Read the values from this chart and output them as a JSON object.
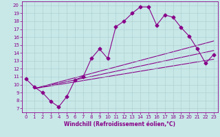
{
  "xlabel": "Windchill (Refroidissement éolien,°C)",
  "ylabel": "",
  "bg_color": "#c8e8e8",
  "line_color": "#880088",
  "xlim": [
    -0.5,
    23.5
  ],
  "ylim": [
    6.5,
    20.5
  ],
  "xticks": [
    0,
    1,
    2,
    3,
    4,
    5,
    6,
    7,
    8,
    9,
    10,
    11,
    12,
    13,
    14,
    15,
    16,
    17,
    18,
    19,
    20,
    21,
    22,
    23
  ],
  "yticks": [
    7,
    8,
    9,
    10,
    11,
    12,
    13,
    14,
    15,
    16,
    17,
    18,
    19,
    20
  ],
  "line1_x": [
    0,
    1,
    2,
    3,
    4,
    5,
    6,
    7,
    8,
    9,
    10,
    11,
    12,
    13,
    14,
    15,
    16,
    17,
    18,
    19,
    20,
    21,
    22,
    23
  ],
  "line1_y": [
    10.7,
    9.7,
    9.0,
    7.9,
    7.2,
    8.5,
    10.6,
    11.0,
    13.3,
    14.5,
    13.3,
    17.3,
    18.0,
    19.0,
    19.8,
    19.8,
    17.5,
    18.8,
    18.5,
    17.2,
    16.1,
    14.5,
    12.7,
    13.8
  ],
  "line2_x": [
    1,
    23
  ],
  "line2_y": [
    9.5,
    13.2
  ],
  "line3_x": [
    1,
    23
  ],
  "line3_y": [
    9.5,
    15.5
  ],
  "line4_x": [
    1,
    23
  ],
  "line4_y": [
    9.5,
    14.3
  ],
  "marker": "D",
  "marker_size": 2.5,
  "line_width": 0.8,
  "label_fontsize": 5.5,
  "tick_fontsize": 5.0
}
